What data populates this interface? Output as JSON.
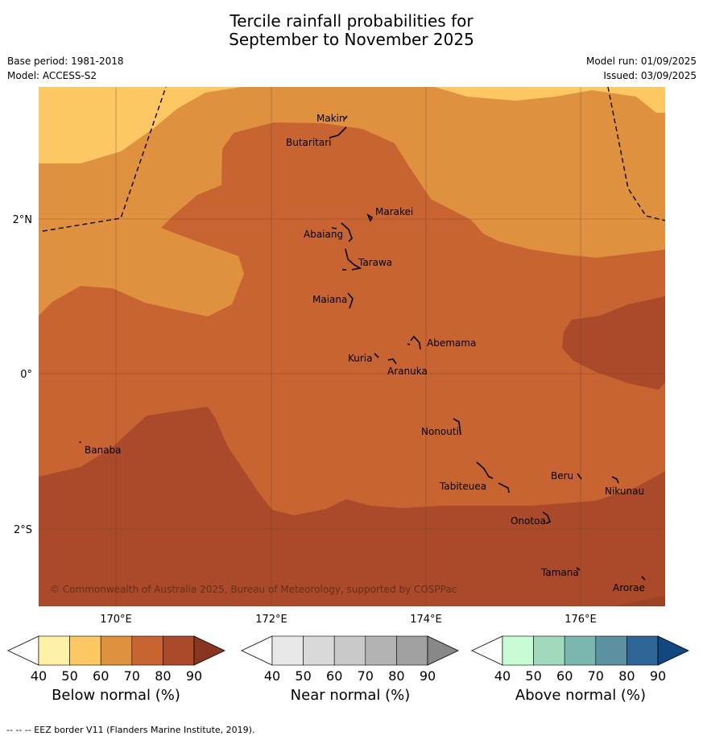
{
  "title": {
    "line1": "Tercile rainfall probabilities for",
    "line2": "September to November 2025"
  },
  "info": {
    "base_period": "Base period: 1981-2018",
    "model": "Model: ACCESS-S2",
    "model_run": "Model run: 01/09/2025",
    "issued": "Issued: 03/09/2025"
  },
  "map": {
    "lat_labels": [
      "2°N",
      "0°",
      "2°S"
    ],
    "lon_labels": [
      "170°E",
      "172°E",
      "174°E",
      "176°E"
    ],
    "copyright": "© Commonwealth of Australia 2025, Bureau of Meteorology, supported by COSPPac",
    "places": [
      "Makin",
      "Butaritari",
      "Marakei",
      "Abaiang",
      "Tarawa",
      "Maiana",
      "Abemama",
      "Kuria",
      "Aranuka",
      "Nonouti",
      "Banaba",
      "Beru",
      "Tabiteuea",
      "Nikunau",
      "Onotoa",
      "Tamana",
      "Arorae"
    ]
  },
  "colorbars": [
    {
      "label": "Below normal (%)",
      "ticks": [
        "40",
        "50",
        "60",
        "70",
        "80",
        "90"
      ],
      "colors": [
        "#ffffff",
        "#fff0a8",
        "#fdc863",
        "#e0913f",
        "#c86432",
        "#ab4a2a",
        "#8a3520"
      ]
    },
    {
      "label": "Near normal (%)",
      "ticks": [
        "40",
        "50",
        "60",
        "70",
        "80",
        "90"
      ],
      "colors": [
        "#ffffff",
        "#e8e8e8",
        "#d9d9d9",
        "#c8c8c8",
        "#b3b3b3",
        "#a0a0a0",
        "#888888"
      ]
    },
    {
      "label": "Above normal (%)",
      "ticks": [
        "40",
        "50",
        "60",
        "70",
        "80",
        "90"
      ],
      "colors": [
        "#ffffff",
        "#c7fcd4",
        "#a1d8be",
        "#7bb7ae",
        "#5c91a0",
        "#2f6497",
        "#124880"
      ]
    }
  ],
  "footer": "--  --  -- EEZ border V11 (Flanders Marine Institute, 2019).",
  "colors": {
    "cat_50_60": "#fdc863",
    "cat_60_70": "#e0913f",
    "cat_70_80": "#c86432",
    "cat_80_90": "#ab4a2a"
  }
}
